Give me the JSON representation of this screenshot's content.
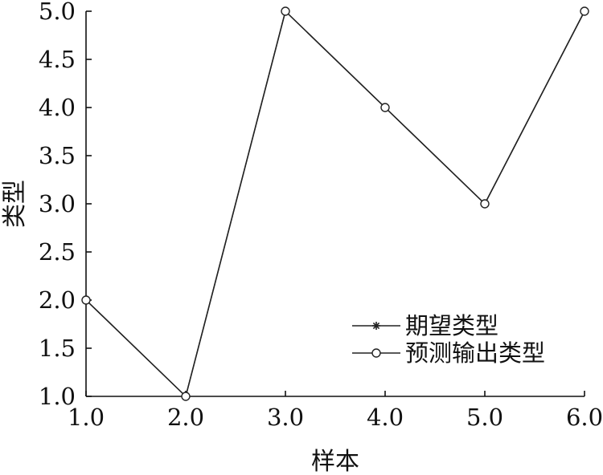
{
  "chart_data": {
    "type": "line",
    "xlabel": "样本",
    "ylabel": "类型",
    "xlim": [
      1.0,
      6.0
    ],
    "ylim": [
      1.0,
      5.0
    ],
    "x_ticks": [
      "1.0",
      "2.0",
      "3.0",
      "4.0",
      "5.0",
      "6.0"
    ],
    "y_ticks": [
      "1.0",
      "1.5",
      "2.0",
      "2.5",
      "3.0",
      "3.5",
      "4.0",
      "4.5",
      "5.0"
    ],
    "x": [
      1,
      2,
      3,
      4,
      5,
      6
    ],
    "series": [
      {
        "name": "期望类型",
        "marker": "star",
        "values": [
          2,
          1,
          5,
          4,
          3,
          5
        ]
      },
      {
        "name": "预测输出类型",
        "marker": "circle",
        "values": [
          2,
          1,
          5,
          4,
          3,
          5
        ]
      }
    ],
    "legend_position": "bottom-right",
    "grid": false
  }
}
